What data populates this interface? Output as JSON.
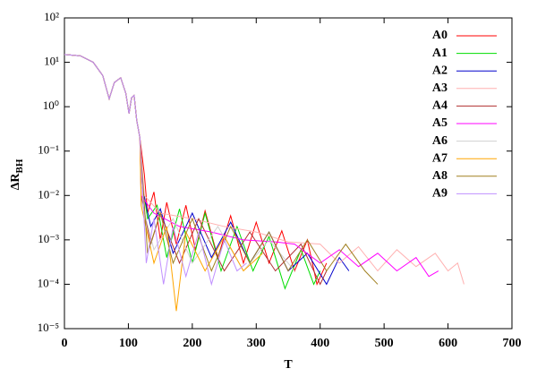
{
  "chart_data": {
    "type": "line",
    "x_label": "T",
    "y_label": {
      "main": "ΔR",
      "sub": "BH"
    },
    "log_y": true,
    "legend_position": "upper right",
    "xlim": [
      0,
      700
    ],
    "xticks": [
      0,
      100,
      200,
      300,
      400,
      500,
      600,
      700
    ],
    "ylim": [
      1e-05,
      100
    ],
    "yticks": [
      {
        "value": 1e-05,
        "label": "10⁻⁵"
      },
      {
        "value": 0.0001,
        "label": "10⁻⁴"
      },
      {
        "value": 0.001,
        "label": "10⁻³"
      },
      {
        "value": 0.01,
        "label": "10⁻²"
      },
      {
        "value": 0.1,
        "label": "10⁻¹"
      },
      {
        "value": 1,
        "label": "10⁰"
      },
      {
        "value": 10,
        "label": "10¹"
      },
      {
        "value": 100,
        "label": "10²"
      }
    ],
    "series": [
      {
        "name": "A0",
        "color": "#ff0000",
        "x": [
          0,
          25,
          45,
          60,
          70,
          78,
          88,
          96,
          101,
          105,
          109,
          113,
          118,
          125,
          130,
          140,
          150,
          160,
          175,
          190,
          205,
          220,
          240,
          260,
          280,
          300,
          320,
          340,
          360,
          380,
          395,
          410
        ],
        "values": [
          15,
          14,
          10,
          5,
          1.5,
          3.5,
          4.5,
          2,
          0.7,
          1.6,
          1.8,
          0.5,
          0.2,
          0.03,
          0.004,
          0.012,
          0.001,
          0.007,
          0.0008,
          0.006,
          0.0006,
          0.0045,
          0.0004,
          0.0035,
          0.0003,
          0.0025,
          0.0003,
          0.0016,
          0.0002,
          0.001,
          0.0001,
          0.0003
        ]
      },
      {
        "name": "A1",
        "color": "#00dd00",
        "x": [
          0,
          25,
          45,
          60,
          70,
          78,
          88,
          96,
          101,
          105,
          109,
          113,
          118,
          122,
          130,
          145,
          160,
          180,
          200,
          220,
          245,
          270,
          295,
          320,
          345,
          370,
          390,
          400
        ],
        "values": [
          15,
          14,
          10,
          5,
          1.5,
          3.5,
          4.5,
          2,
          0.7,
          1.6,
          1.8,
          0.5,
          0.2,
          0.02,
          0.003,
          0.006,
          0.0004,
          0.005,
          0.0003,
          0.004,
          0.0002,
          0.002,
          0.0002,
          0.0012,
          8e-05,
          0.0006,
          0.0001,
          0.0002
        ]
      },
      {
        "name": "A2",
        "color": "#0000cc",
        "x": [
          0,
          25,
          45,
          60,
          70,
          78,
          88,
          96,
          101,
          105,
          109,
          113,
          118,
          122,
          135,
          150,
          170,
          200,
          230,
          260,
          290,
          320,
          350,
          380,
          410,
          430,
          445
        ],
        "values": [
          15,
          14,
          10,
          5,
          1.5,
          3.5,
          4.5,
          2,
          0.7,
          1.6,
          1.8,
          0.5,
          0.2,
          0.015,
          0.002,
          0.005,
          0.0005,
          0.004,
          0.0004,
          0.0025,
          0.0003,
          0.0015,
          0.0002,
          0.0005,
          0.0001,
          0.0004,
          0.0002
        ]
      },
      {
        "name": "A3",
        "color": "#ffb0b0",
        "x": [
          0,
          25,
          45,
          60,
          70,
          78,
          88,
          96,
          101,
          105,
          109,
          113,
          118,
          125,
          150,
          200,
          250,
          300,
          350,
          400,
          430,
          460,
          490,
          520,
          550,
          580,
          600,
          615,
          625
        ],
        "values": [
          15,
          14,
          10,
          5,
          1.5,
          3.5,
          4.5,
          2,
          0.7,
          1.6,
          1.8,
          0.5,
          0.2,
          0.01,
          0.004,
          0.003,
          0.002,
          0.0015,
          0.0009,
          0.0008,
          0.0003,
          0.0007,
          0.0002,
          0.0006,
          0.00025,
          0.0005,
          0.0002,
          0.0003,
          0.0001
        ]
      },
      {
        "name": "A4",
        "color": "#b03030",
        "x": [
          0,
          25,
          45,
          60,
          70,
          78,
          88,
          96,
          101,
          105,
          109,
          113,
          118,
          120,
          135,
          150,
          180,
          210,
          250,
          290,
          330,
          370,
          400,
          410
        ],
        "values": [
          15,
          14,
          10,
          5,
          1.5,
          3.5,
          4.5,
          2,
          0.7,
          1.6,
          1.8,
          0.5,
          0.2,
          0.01,
          0.0008,
          0.004,
          0.0003,
          0.003,
          0.0002,
          0.0015,
          0.0002,
          0.0008,
          0.0001,
          0.0002
        ]
      },
      {
        "name": "A5",
        "color": "#ff00ff",
        "x": [
          0,
          25,
          45,
          60,
          70,
          78,
          88,
          96,
          101,
          105,
          109,
          113,
          118,
          120,
          140,
          180,
          230,
          280,
          330,
          360,
          400,
          430,
          460,
          490,
          520,
          550,
          570,
          585
        ],
        "values": [
          15,
          14,
          10,
          5,
          1.5,
          3.5,
          4.5,
          2,
          0.7,
          1.6,
          1.8,
          0.5,
          0.2,
          0.01,
          0.004,
          0.002,
          0.0015,
          0.001,
          0.0009,
          0.0008,
          0.0003,
          0.0006,
          0.00025,
          0.0005,
          0.0002,
          0.0004,
          0.00015,
          0.0002
        ]
      },
      {
        "name": "A6",
        "color": "#d0d0d0",
        "x": [
          0,
          25,
          45,
          60,
          70,
          78,
          88,
          96,
          101,
          105,
          109,
          113,
          118,
          120,
          140,
          170,
          200,
          240,
          280,
          320,
          360
        ],
        "values": [
          15,
          14,
          10,
          5,
          1.5,
          3.5,
          4.5,
          2,
          0.7,
          1.6,
          1.8,
          0.5,
          0.2,
          0.008,
          0.0006,
          0.003,
          0.0003,
          0.002,
          0.0002,
          0.001,
          0.0002
        ]
      },
      {
        "name": "A7",
        "color": "#ffa500",
        "x": [
          0,
          25,
          45,
          60,
          70,
          78,
          88,
          96,
          101,
          105,
          109,
          113,
          118,
          120,
          140,
          160,
          175,
          190,
          220,
          250,
          280,
          310
        ],
        "values": [
          15,
          14,
          10,
          5,
          1.5,
          3.5,
          4.5,
          2,
          0.7,
          1.6,
          1.8,
          0.5,
          0.2,
          0.006,
          0.0003,
          0.002,
          2.5e-05,
          0.0015,
          0.0002,
          0.0012,
          0.0002,
          0.0005
        ]
      },
      {
        "name": "A8",
        "color": "#a08020",
        "x": [
          0,
          25,
          45,
          60,
          70,
          78,
          88,
          96,
          101,
          105,
          109,
          113,
          118,
          130,
          150,
          170,
          200,
          230,
          260,
          290,
          320,
          350,
          380,
          410,
          440,
          470,
          490
        ],
        "values": [
          15,
          14,
          10,
          5,
          1.5,
          3.5,
          4.5,
          2,
          0.7,
          1.6,
          1.8,
          0.5,
          0.2,
          0.0005,
          0.004,
          0.0003,
          0.003,
          0.0002,
          0.002,
          0.0003,
          0.0015,
          0.0002,
          0.001,
          0.0002,
          0.0008,
          0.0002,
          0.0001
        ]
      },
      {
        "name": "A9",
        "color": "#c090ff",
        "x": [
          0,
          25,
          45,
          60,
          70,
          78,
          88,
          96,
          101,
          105,
          109,
          113,
          118,
          128,
          140,
          155,
          170,
          190,
          210,
          230,
          250,
          270,
          285
        ],
        "values": [
          15,
          14,
          10,
          5,
          1.5,
          3.5,
          4.5,
          2,
          0.7,
          1.6,
          1.8,
          0.5,
          0.2,
          0.0003,
          0.003,
          0.0001,
          0.002,
          0.00015,
          0.0015,
          0.0001,
          0.001,
          0.0002,
          0.0003
        ]
      }
    ]
  }
}
